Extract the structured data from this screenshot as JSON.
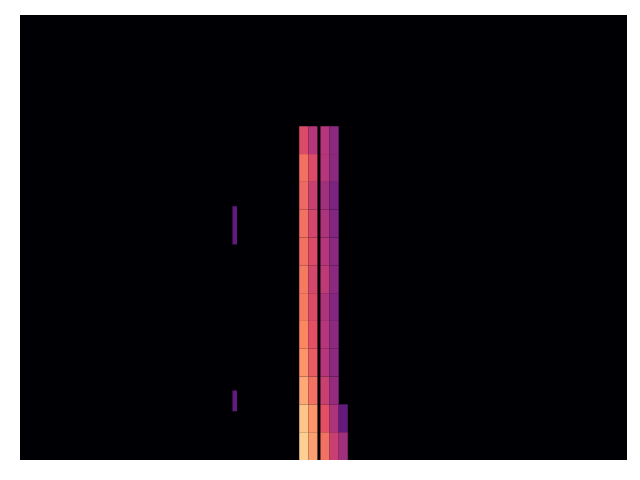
{
  "chart_data": {
    "type": "heatmap",
    "tick_labels": false,
    "xlim": [
      0,
      200
    ],
    "ylim": [
      0,
      128
    ],
    "xticks": [],
    "yticks": [],
    "color_range": [
      0,
      1
    ],
    "cells": [
      {
        "x": [
          92,
          95
        ],
        "y": [
          0,
          8
        ],
        "value": 0.9
      },
      {
        "x": [
          92,
          95
        ],
        "y": [
          8,
          16
        ],
        "value": 0.88
      },
      {
        "x": [
          92,
          95
        ],
        "y": [
          16,
          24
        ],
        "value": 0.82
      },
      {
        "x": [
          92,
          95
        ],
        "y": [
          24,
          32
        ],
        "value": 0.78
      },
      {
        "x": [
          92,
          95
        ],
        "y": [
          32,
          40
        ],
        "value": 0.75
      },
      {
        "x": [
          92,
          95
        ],
        "y": [
          40,
          48
        ],
        "value": 0.72
      },
      {
        "x": [
          92,
          95
        ],
        "y": [
          48,
          56
        ],
        "value": 0.72
      },
      {
        "x": [
          92,
          95
        ],
        "y": [
          56,
          64
        ],
        "value": 0.7
      },
      {
        "x": [
          92,
          95
        ],
        "y": [
          64,
          72
        ],
        "value": 0.7
      },
      {
        "x": [
          92,
          95
        ],
        "y": [
          72,
          80
        ],
        "value": 0.68
      },
      {
        "x": [
          92,
          95
        ],
        "y": [
          80,
          88
        ],
        "value": 0.7
      },
      {
        "x": [
          92,
          95
        ],
        "y": [
          88,
          96
        ],
        "value": 0.6
      },
      {
        "x": [
          95,
          98
        ],
        "y": [
          0,
          8
        ],
        "value": 0.8
      },
      {
        "x": [
          95,
          98
        ],
        "y": [
          8,
          16
        ],
        "value": 0.78
      },
      {
        "x": [
          95,
          98
        ],
        "y": [
          16,
          24
        ],
        "value": 0.7
      },
      {
        "x": [
          95,
          98
        ],
        "y": [
          24,
          32
        ],
        "value": 0.65
      },
      {
        "x": [
          95,
          98
        ],
        "y": [
          32,
          40
        ],
        "value": 0.62
      },
      {
        "x": [
          95,
          98
        ],
        "y": [
          40,
          48
        ],
        "value": 0.6
      },
      {
        "x": [
          95,
          98
        ],
        "y": [
          48,
          56
        ],
        "value": 0.58
      },
      {
        "x": [
          95,
          98
        ],
        "y": [
          56,
          64
        ],
        "value": 0.6
      },
      {
        "x": [
          95,
          98
        ],
        "y": [
          64,
          72
        ],
        "value": 0.58
      },
      {
        "x": [
          95,
          98
        ],
        "y": [
          72,
          80
        ],
        "value": 0.55
      },
      {
        "x": [
          95,
          98
        ],
        "y": [
          80,
          88
        ],
        "value": 0.6
      },
      {
        "x": [
          95,
          98
        ],
        "y": [
          88,
          96
        ],
        "value": 0.5
      },
      {
        "x": [
          99,
          102
        ],
        "y": [
          0,
          8
        ],
        "value": 0.7
      },
      {
        "x": [
          99,
          102
        ],
        "y": [
          8,
          16
        ],
        "value": 0.62
      },
      {
        "x": [
          99,
          102
        ],
        "y": [
          16,
          24
        ],
        "value": 0.55
      },
      {
        "x": [
          99,
          102
        ],
        "y": [
          24,
          32
        ],
        "value": 0.5
      },
      {
        "x": [
          99,
          102
        ],
        "y": [
          32,
          40
        ],
        "value": 0.5
      },
      {
        "x": [
          99,
          102
        ],
        "y": [
          40,
          48
        ],
        "value": 0.48
      },
      {
        "x": [
          99,
          102
        ],
        "y": [
          48,
          56
        ],
        "value": 0.52
      },
      {
        "x": [
          99,
          102
        ],
        "y": [
          56,
          64
        ],
        "value": 0.5
      },
      {
        "x": [
          99,
          102
        ],
        "y": [
          64,
          72
        ],
        "value": 0.48
      },
      {
        "x": [
          99,
          102
        ],
        "y": [
          72,
          80
        ],
        "value": 0.45
      },
      {
        "x": [
          99,
          102
        ],
        "y": [
          80,
          88
        ],
        "value": 0.5
      },
      {
        "x": [
          99,
          102
        ],
        "y": [
          88,
          96
        ],
        "value": 0.5
      },
      {
        "x": [
          102,
          105
        ],
        "y": [
          0,
          8
        ],
        "value": 0.55
      },
      {
        "x": [
          102,
          105
        ],
        "y": [
          8,
          16
        ],
        "value": 0.48
      },
      {
        "x": [
          102,
          105
        ],
        "y": [
          16,
          24
        ],
        "value": 0.42
      },
      {
        "x": [
          102,
          105
        ],
        "y": [
          24,
          32
        ],
        "value": 0.4
      },
      {
        "x": [
          102,
          105
        ],
        "y": [
          32,
          40
        ],
        "value": 0.4
      },
      {
        "x": [
          102,
          105
        ],
        "y": [
          40,
          48
        ],
        "value": 0.38
      },
      {
        "x": [
          102,
          105
        ],
        "y": [
          48,
          56
        ],
        "value": 0.4
      },
      {
        "x": [
          102,
          105
        ],
        "y": [
          56,
          64
        ],
        "value": 0.4
      },
      {
        "x": [
          102,
          105
        ],
        "y": [
          64,
          72
        ],
        "value": 0.38
      },
      {
        "x": [
          102,
          105
        ],
        "y": [
          72,
          80
        ],
        "value": 0.36
      },
      {
        "x": [
          102,
          105
        ],
        "y": [
          80,
          88
        ],
        "value": 0.4
      },
      {
        "x": [
          102,
          105
        ],
        "y": [
          88,
          96
        ],
        "value": 0.4
      },
      {
        "x": [
          105,
          108
        ],
        "y": [
          0,
          8
        ],
        "value": 0.45
      },
      {
        "x": [
          105,
          108
        ],
        "y": [
          8,
          16
        ],
        "value": 0.3
      },
      {
        "x": [
          70,
          71.5
        ],
        "y": [
          62,
          73
        ],
        "value": 0.3
      },
      {
        "x": [
          70,
          71.5
        ],
        "y": [
          14,
          20
        ],
        "value": 0.3
      }
    ]
  }
}
